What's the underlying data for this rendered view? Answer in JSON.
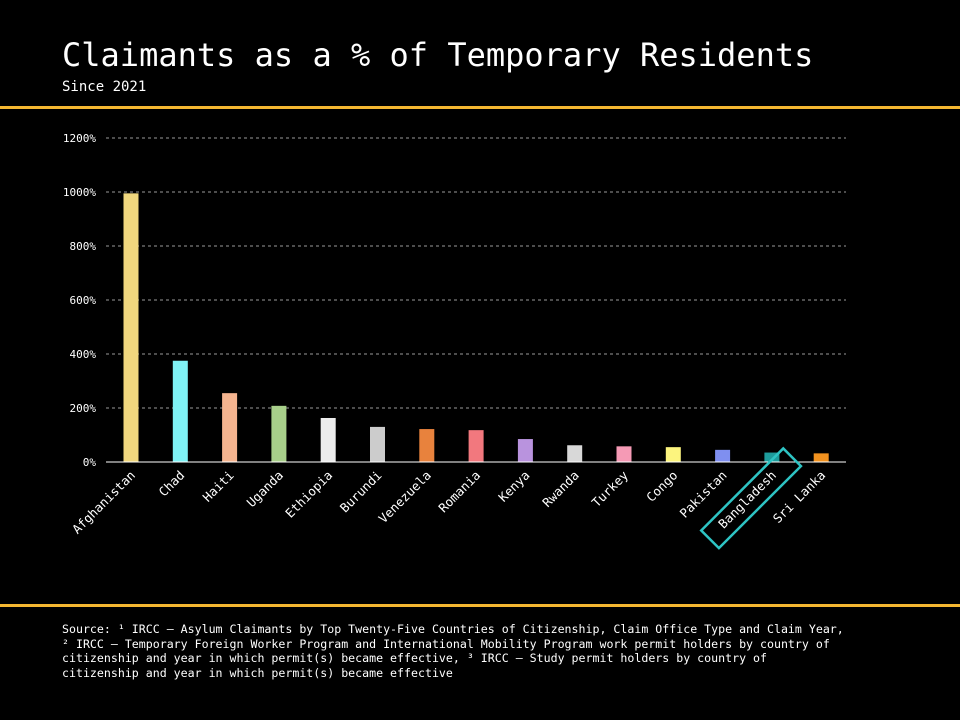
{
  "title": "Claimants as a % of Temporary Residents",
  "subtitle": "Since 2021",
  "source_text": "Source: ¹ IRCC – Asylum Claimants by Top Twenty-Five Countries of Citizenship, Claim Office Type and Claim Year,\n² IRCC – Temporary Foreign Worker Program and International Mobility Program work permit holders by country of\ncitizenship and year in which permit(s) became effective, ³ IRCC –  Study permit holders by country of\ncitizenship and year in which permit(s) became effective",
  "colors": {
    "background": "#000000",
    "accent_rule": "#f5b731",
    "highlight_box": "#2ec4c4",
    "gridline": "#9a9a9a"
  },
  "chart_data": {
    "type": "bar",
    "title": "Claimants as a % of Temporary Residents",
    "subtitle": "Since 2021",
    "xlabel": "",
    "ylabel": "",
    "ylim": [
      0,
      1200
    ],
    "yticks": [
      0,
      200,
      400,
      600,
      800,
      1000,
      1200
    ],
    "ytick_labels": [
      "0%",
      "200%",
      "400%",
      "600%",
      "800%",
      "1000%",
      "1200%"
    ],
    "grid": true,
    "categories": [
      "Afghanistan",
      "Chad",
      "Haiti",
      "Uganda",
      "Ethiopia",
      "Burundi",
      "Venezuela",
      "Romania",
      "Kenya",
      "Rwanda",
      "Turkey",
      "Congo",
      "Pakistan",
      "Bangladesh",
      "Sri Lanka"
    ],
    "values": [
      995,
      375,
      255,
      208,
      163,
      130,
      122,
      118,
      85,
      62,
      58,
      55,
      45,
      35,
      32
    ],
    "bar_colors": [
      "#f0d77e",
      "#7ff2f5",
      "#f5b48f",
      "#a8cf8a",
      "#ececec",
      "#cccccc",
      "#e8823d",
      "#f2787e",
      "#b993de",
      "#d8d8d8",
      "#f59ab5",
      "#fcf47e",
      "#7f8ff0",
      "#1e9c9c",
      "#f2921f"
    ],
    "highlighted_category": "Bangladesh"
  }
}
